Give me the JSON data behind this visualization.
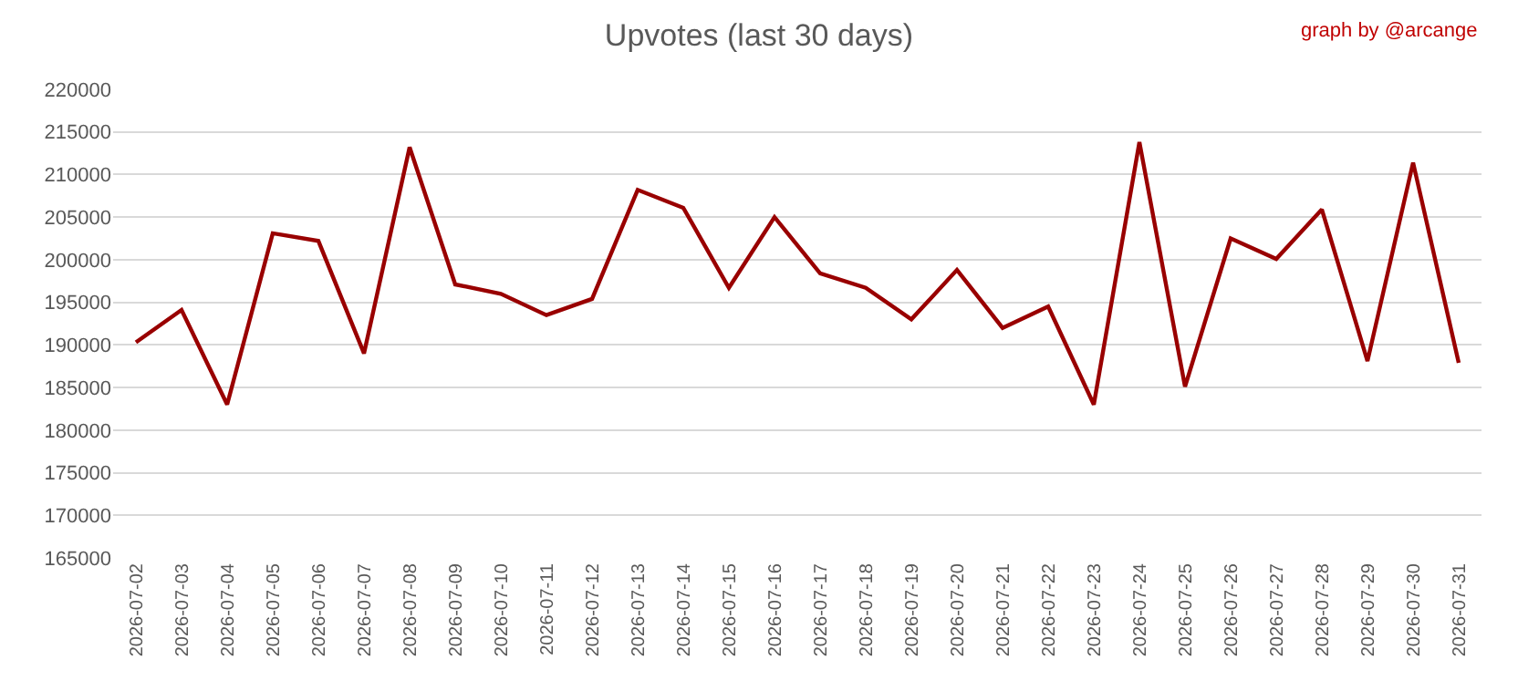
{
  "chart_data": {
    "type": "line",
    "title": "Upvotes (last 30 days)",
    "annotations": [
      "graph by @arcange"
    ],
    "categories": [
      "2026-07-02",
      "2026-07-03",
      "2026-07-04",
      "2026-07-05",
      "2026-07-06",
      "2026-07-07",
      "2026-07-08",
      "2026-07-09",
      "2026-07-10",
      "2026-07-11",
      "2026-07-12",
      "2026-07-13",
      "2026-07-14",
      "2026-07-15",
      "2026-07-16",
      "2026-07-17",
      "2026-07-18",
      "2026-07-19",
      "2026-07-20",
      "2026-07-21",
      "2026-07-22",
      "2026-07-23",
      "2026-07-24",
      "2026-07-25",
      "2026-07-26",
      "2026-07-27",
      "2026-07-28",
      "2026-07-29",
      "2026-07-30",
      "2026-07-31"
    ],
    "series": [
      {
        "color": "#990000",
        "values": [
          190300,
          194100,
          183000,
          203100,
          202200,
          189000,
          213200,
          197100,
          196000,
          193500,
          195400,
          208200,
          206100,
          196700,
          205000,
          198400,
          196700,
          193000,
          198800,
          192000,
          194500,
          183000,
          213800,
          185100,
          202500,
          200100,
          205900,
          188100,
          211400,
          187900
        ]
      }
    ],
    "ylim": [
      165000,
      220000
    ],
    "yticks": [
      165000,
      170000,
      175000,
      180000,
      185000,
      190000,
      195000,
      200000,
      205000,
      210000,
      215000,
      220000
    ],
    "grid": "y",
    "legend": false,
    "marker": "none",
    "line_style": "solid"
  }
}
